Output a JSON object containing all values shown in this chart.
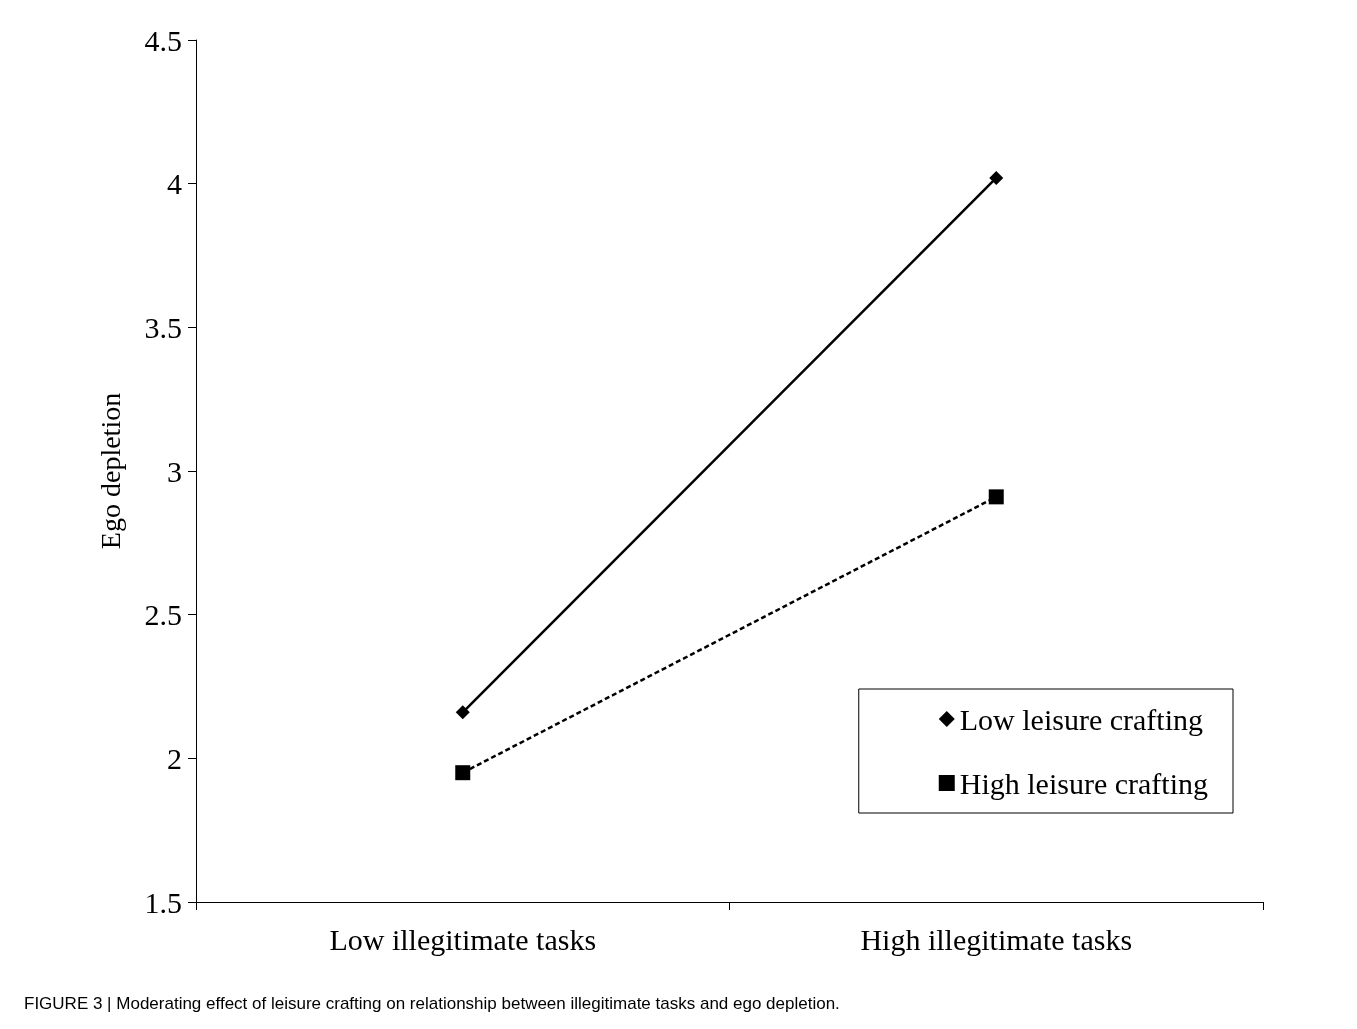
{
  "chart_data": {
    "type": "line",
    "ylabel": "Ego depletion",
    "categories": [
      "Low illegitimate tasks",
      "High illegitimate tasks"
    ],
    "series": [
      {
        "name": "Low leisure crafting",
        "color": "#000000",
        "values": [
          2.16,
          4.02
        ],
        "marker": "diamond",
        "line_style": "solid"
      },
      {
        "name": "High leisure crafting",
        "color": "#000000",
        "values": [
          1.95,
          2.91
        ],
        "marker": "square",
        "line_style": "dashed"
      }
    ],
    "ylim": [
      1.5,
      4.5
    ],
    "yticks": [
      1.5,
      2,
      2.5,
      3,
      3.5,
      4,
      4.5
    ],
    "grid": false,
    "legend": "bottom right",
    "annotations": [
      "FIGURE 3 | Moderating effect of leisure crafting on relationship between illegitimate tasks and ego depletion."
    ]
  }
}
